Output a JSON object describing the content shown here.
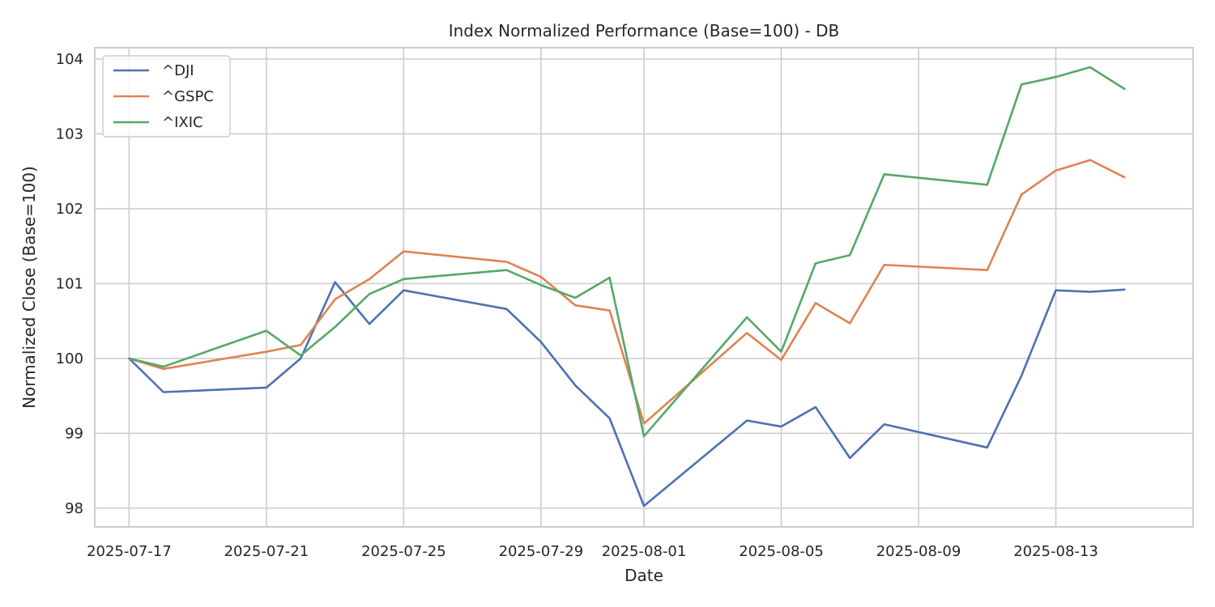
{
  "chart_data": {
    "type": "line",
    "title": "Index Normalized Performance (Base=100) - DB",
    "xlabel": "Date",
    "ylabel": "Normalized Close (Base=100)",
    "x": [
      "2025-07-17",
      "2025-07-18",
      "2025-07-21",
      "2025-07-22",
      "2025-07-23",
      "2025-07-24",
      "2025-07-25",
      "2025-07-28",
      "2025-07-29",
      "2025-07-30",
      "2025-07-31",
      "2025-08-01",
      "2025-08-04",
      "2025-08-05",
      "2025-08-06",
      "2025-08-07",
      "2025-08-08",
      "2025-08-11",
      "2025-08-12",
      "2025-08-13",
      "2025-08-14",
      "2025-08-15"
    ],
    "xlim": [
      "2025-07-16",
      "2025-08-17"
    ],
    "x_ticks": [
      "2025-07-17",
      "2025-07-21",
      "2025-07-25",
      "2025-07-29",
      "2025-08-01",
      "2025-08-05",
      "2025-08-09",
      "2025-08-13"
    ],
    "ylim": [
      97.75,
      104.15
    ],
    "y_ticks": [
      98,
      99,
      100,
      101,
      102,
      103,
      104
    ],
    "grid": true,
    "legend_position": "top-left",
    "series": [
      {
        "name": "^DJI",
        "color": "#4c72b0",
        "values": [
          100.0,
          99.55,
          99.61,
          100.0,
          101.02,
          100.46,
          100.91,
          100.66,
          100.22,
          99.64,
          99.2,
          98.03,
          99.17,
          99.09,
          99.35,
          98.67,
          99.12,
          98.81,
          99.77,
          100.91,
          100.89,
          100.92
        ]
      },
      {
        "name": "^GSPC",
        "color": "#dd8452",
        "values": [
          100.0,
          99.86,
          100.09,
          100.18,
          100.79,
          101.06,
          101.43,
          101.29,
          101.09,
          100.71,
          100.64,
          99.13,
          100.34,
          99.98,
          100.74,
          100.47,
          101.25,
          101.18,
          102.19,
          102.51,
          102.65,
          102.42
        ]
      },
      {
        "name": "^IXIC",
        "color": "#55a868",
        "values": [
          100.0,
          99.89,
          100.37,
          100.04,
          100.42,
          100.86,
          101.06,
          101.18,
          100.98,
          100.81,
          101.08,
          98.96,
          100.55,
          100.09,
          101.27,
          101.38,
          102.46,
          102.32,
          103.66,
          103.76,
          103.89,
          103.6
        ]
      }
    ]
  }
}
